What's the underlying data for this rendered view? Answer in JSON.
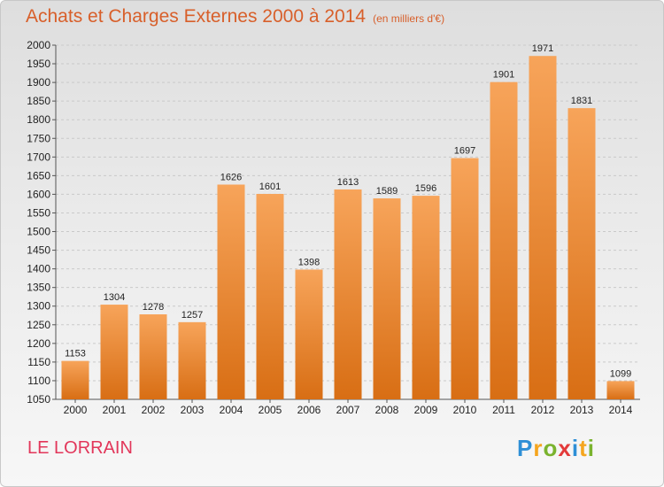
{
  "chart_data": {
    "type": "bar",
    "title": "Achats et Charges Externes 2000 à 2014",
    "subtitle": "(en milliers d'€)",
    "categories": [
      "2000",
      "2001",
      "2002",
      "2003",
      "2004",
      "2005",
      "2006",
      "2007",
      "2008",
      "2009",
      "2010",
      "2011",
      "2012",
      "2013",
      "2014"
    ],
    "values": [
      1153,
      1304,
      1278,
      1257,
      1626,
      1601,
      1398,
      1613,
      1589,
      1596,
      1697,
      1901,
      1971,
      1831,
      1099
    ],
    "ylim": [
      1050,
      2000
    ],
    "yticks": [
      1050,
      1100,
      1150,
      1200,
      1250,
      1300,
      1350,
      1400,
      1450,
      1500,
      1550,
      1600,
      1650,
      1700,
      1750,
      1800,
      1850,
      1900,
      1950,
      2000
    ],
    "xlabel": "",
    "ylabel": "",
    "grid": true,
    "bar_color": "#f08a2a",
    "text_color": "#d85f2a"
  },
  "footer": {
    "place": "LE LORRAIN",
    "logo_letters": [
      {
        "ch": "P",
        "color": "#2e8fd6"
      },
      {
        "ch": "r",
        "color": "#f5a51e"
      },
      {
        "ch": "o",
        "color": "#7ab32e"
      },
      {
        "ch": "x",
        "color": "#e33a3a"
      },
      {
        "ch": "i",
        "color": "#2e8fd6"
      },
      {
        "ch": "t",
        "color": "#f5a51e"
      },
      {
        "ch": "i",
        "color": "#7ab32e"
      }
    ]
  }
}
